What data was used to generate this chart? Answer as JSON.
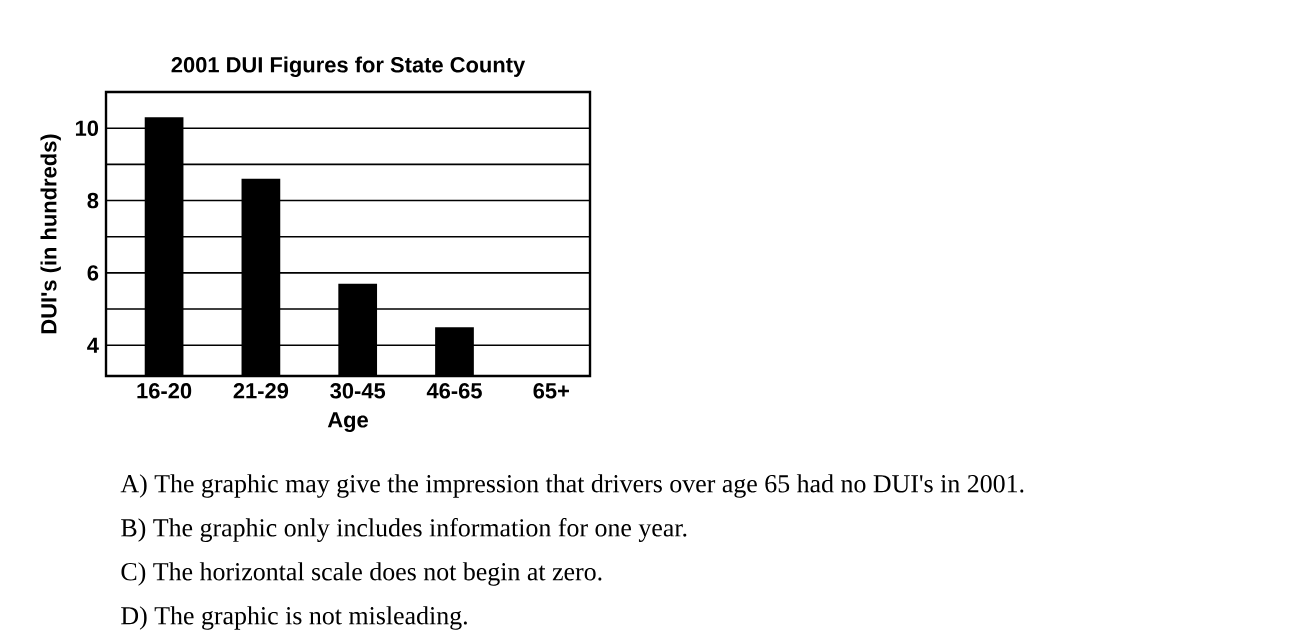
{
  "chart_data": {
    "type": "bar",
    "title": "2001 DUI Figures for State County",
    "xlabel": "Age",
    "ylabel": "DUI's (in hundreds)",
    "categories": [
      "16-20",
      "21-29",
      "30-45",
      "46-65",
      "65+"
    ],
    "values": [
      10.3,
      8.6,
      5.7,
      4.5,
      null
    ],
    "color": "#000000",
    "ylim": [
      3.15,
      11
    ],
    "yticks": [
      4,
      {
        "value": 5,
        "label": null
      },
      6,
      {
        "value": 7,
        "label": null
      },
      8,
      {
        "value": 9,
        "label": null
      },
      10
    ],
    "grid": "y",
    "annotations": [
      "A) The graphic may give the impression that drivers over age 65 had no DUI's in 2001.",
      "B) The graphic only includes information for one year.",
      "C) The horizontal scale does not begin at zero.",
      "D) The graphic is not misleading."
    ]
  }
}
